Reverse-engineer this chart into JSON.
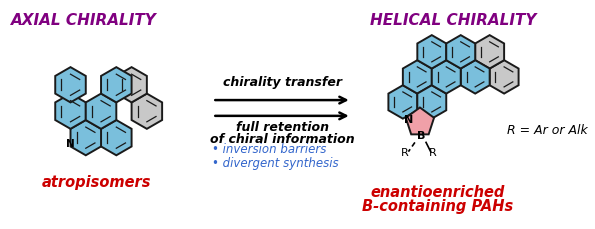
{
  "title_left": "AXIAL CHIRALITY",
  "title_right": "HELICAL CHIRALITY",
  "label_left": "atropisomers",
  "label_right_line1": "enantioenriched",
  "label_right_line2": "B-containing PAHs",
  "arrow_text1": "chirality transfer",
  "arrow_text2": "full retention",
  "arrow_text3": "of chiral information",
  "bullet1": "• inversion barriers",
  "bullet2": "• divergent synthesis",
  "r_label": "R = Ar or Alk",
  "title_color": "#800080",
  "red_color": "#cc0000",
  "blue_color": "#7abfdc",
  "gray_color": "#c8c8c8",
  "pink_color": "#f0a0a8",
  "bullet_color": "#3366cc",
  "bg_color": "#ffffff",
  "edge_color": "#1a1a1a"
}
